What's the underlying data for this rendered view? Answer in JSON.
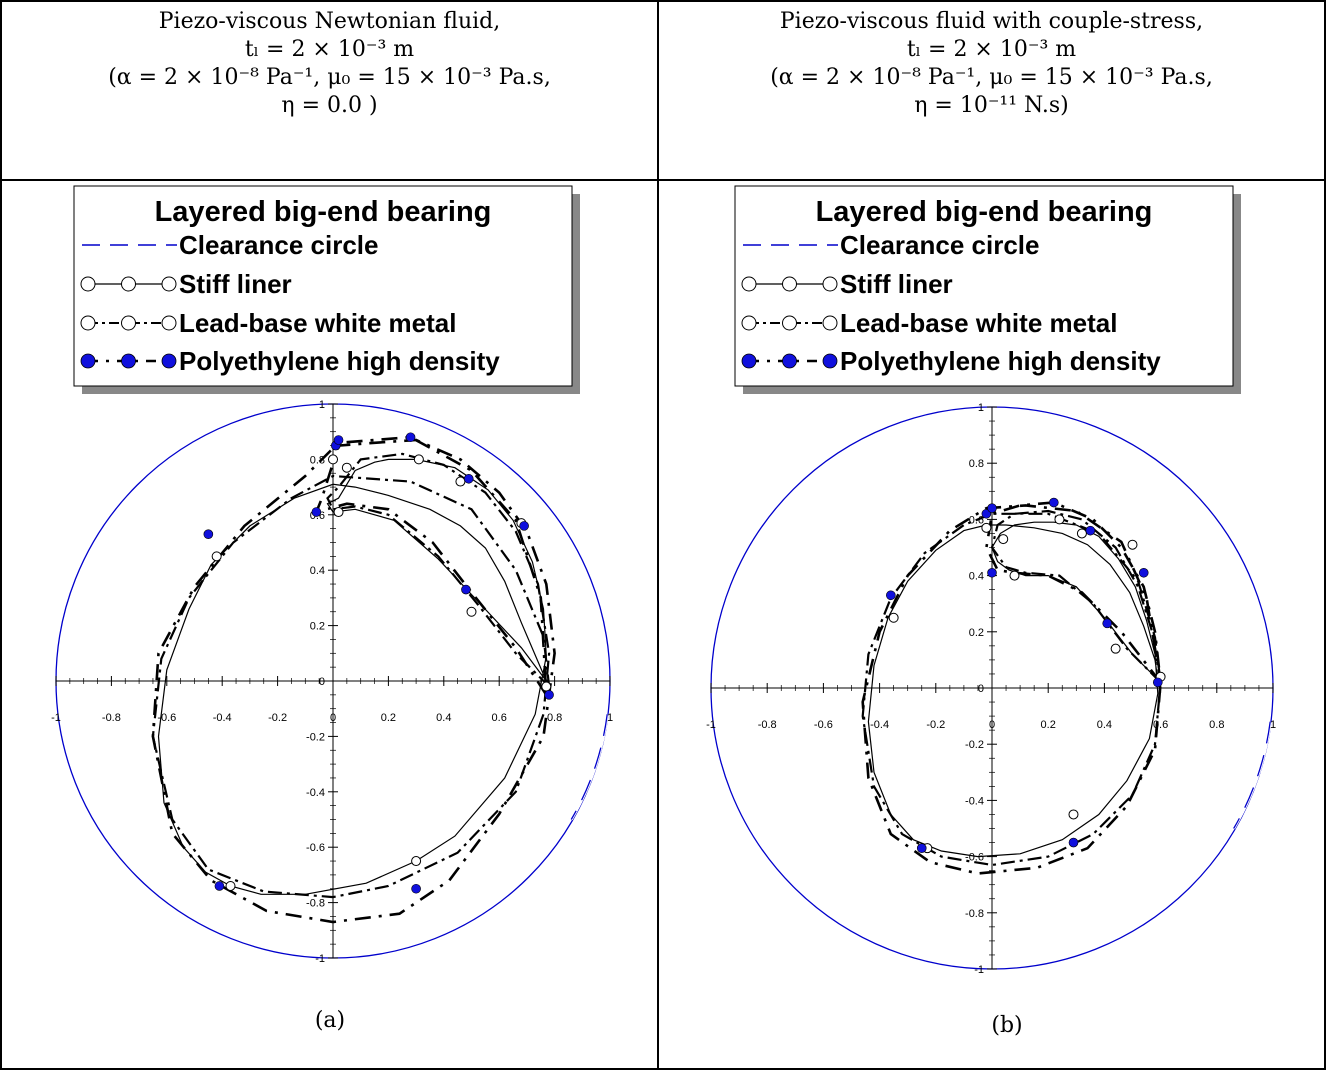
{
  "headers": [
    {
      "line1": "Piezo-viscous Newtonian fluid,",
      "line2": "tₗ = 2 × 10⁻³ m",
      "line3": "(α = 2 × 10⁻⁸ Pa⁻¹, μ₀ = 15 × 10⁻³ Pa.s,",
      "line4": "η = 0.0 )"
    },
    {
      "line1": "Piezo-viscous fluid with couple-stress,",
      "line2": "tₗ = 2 × 10⁻³ m",
      "line3": "(α = 2 × 10⁻⁸ Pa⁻¹, μ₀ = 15 × 10⁻³ Pa.s,",
      "line4": "η = 10⁻¹¹ N.s)"
    }
  ],
  "captions": [
    "(a)",
    "(b)"
  ],
  "colors": {
    "clearance": "#0000cc",
    "polyethylene": "#1010dd",
    "black": "#000000"
  },
  "chart_data": [
    {
      "type": "line",
      "panel": "(a)",
      "legend_title": "Layered big-end bearing",
      "legend": [
        "Clearance circle",
        "Stiff liner",
        "Lead-base white metal",
        "Polyethylene high density"
      ],
      "xlim": [
        -1,
        1
      ],
      "ylim": [
        -1,
        1
      ],
      "x_ticks": [
        "-1",
        "-0.8",
        "-0.6",
        "-0.4",
        "-0.2",
        "0",
        "0.2",
        "0.4",
        "0.6",
        "0.8",
        "1"
      ],
      "y_ticks": [
        "1",
        "0.8",
        "0.6",
        "0.4",
        "0.2",
        "0",
        "-0.2",
        "-0.4",
        "-0.6",
        "-0.8",
        "-1"
      ],
      "series": [
        {
          "name": "Clearance circle",
          "style": "circle",
          "radius": 1
        },
        {
          "name": "Stiff liner",
          "style": "solid-open",
          "x": [
            0.77,
            0.68,
            0.53,
            0.38,
            0.22,
            0.08,
            0.0,
            -0.02,
            0.02,
            0.08,
            0.15,
            0.2,
            0.3,
            0.44,
            0.56,
            0.65,
            0.72,
            0.76,
            0.77,
            0.73,
            0.62,
            0.44,
            0.3,
            0.12,
            -0.1,
            -0.26,
            -0.37,
            -0.46,
            -0.54,
            -0.61,
            -0.63,
            -0.6,
            -0.52,
            -0.44,
            -0.3,
            -0.14,
            0.0,
            0.08,
            0.2,
            0.35,
            0.46,
            0.55,
            0.62,
            0.68,
            0.74,
            0.77
          ],
          "y": [
            0.0,
            0.12,
            0.28,
            0.44,
            0.58,
            0.62,
            0.61,
            0.64,
            0.66,
            0.76,
            0.79,
            0.8,
            0.8,
            0.77,
            0.69,
            0.58,
            0.43,
            0.26,
            0.09,
            -0.12,
            -0.35,
            -0.56,
            -0.65,
            -0.73,
            -0.77,
            -0.77,
            -0.74,
            -0.69,
            -0.6,
            -0.44,
            -0.2,
            0.04,
            0.26,
            0.42,
            0.56,
            0.66,
            0.71,
            0.7,
            0.67,
            0.62,
            0.56,
            0.48,
            0.36,
            0.21,
            0.07,
            0.0
          ],
          "markers_x": [
            0.77,
            0.5,
            0.02,
            0.0,
            0.05,
            0.31,
            0.46,
            0.68,
            0.3,
            -0.37,
            -0.42
          ],
          "markers_y": [
            -0.02,
            0.25,
            0.61,
            0.8,
            0.77,
            0.8,
            0.72,
            0.57,
            -0.65,
            -0.74,
            0.45
          ]
        },
        {
          "name": "Lead-base white metal",
          "style": "dashdot-open",
          "x": [
            0.78,
            0.66,
            0.52,
            0.38,
            0.2,
            0.08,
            0.0,
            -0.02,
            0.02,
            0.1,
            0.25,
            0.4,
            0.55,
            0.66,
            0.74,
            0.78,
            0.76,
            0.66,
            0.45,
            0.2,
            0.0,
            -0.25,
            -0.45,
            -0.58,
            -0.65,
            -0.62,
            -0.52,
            -0.36,
            -0.15,
            0.0,
            0.28,
            0.5,
            0.66,
            0.76,
            0.78
          ],
          "y": [
            -0.02,
            0.1,
            0.28,
            0.45,
            0.6,
            0.63,
            0.62,
            0.66,
            0.7,
            0.8,
            0.82,
            0.78,
            0.68,
            0.54,
            0.35,
            0.1,
            -0.12,
            -0.4,
            -0.62,
            -0.74,
            -0.78,
            -0.76,
            -0.68,
            -0.5,
            -0.2,
            0.08,
            0.3,
            0.5,
            0.66,
            0.74,
            0.72,
            0.62,
            0.4,
            0.16,
            -0.02
          ]
        },
        {
          "name": "Polyethylene high density",
          "style": "dashdot-filled",
          "x": [
            0.77,
            0.66,
            0.5,
            0.36,
            0.2,
            0.05,
            -0.06,
            -0.04,
            0.02,
            0.15,
            0.3,
            0.46,
            0.6,
            0.7,
            0.77,
            0.8,
            0.76,
            0.6,
            0.42,
            0.24,
            0.0,
            -0.24,
            -0.44,
            -0.58,
            -0.65,
            -0.63,
            -0.5,
            -0.32,
            -0.1,
            0.02,
            0.28,
            0.5,
            0.66,
            0.75,
            0.77
          ],
          "y": [
            -0.05,
            0.12,
            0.32,
            0.5,
            0.62,
            0.64,
            0.61,
            0.66,
            0.85,
            0.86,
            0.87,
            0.8,
            0.68,
            0.54,
            0.35,
            0.1,
            -0.2,
            -0.48,
            -0.72,
            -0.84,
            -0.87,
            -0.83,
            -0.72,
            -0.55,
            -0.2,
            0.1,
            0.34,
            0.56,
            0.74,
            0.86,
            0.88,
            0.76,
            0.58,
            0.3,
            -0.05
          ],
          "markers_x": [
            0.78,
            0.48,
            -0.06,
            0.01,
            0.02,
            0.28,
            0.49,
            0.69,
            0.3,
            -0.41,
            -0.45
          ],
          "markers_y": [
            -0.05,
            0.33,
            0.61,
            0.85,
            0.87,
            0.88,
            0.73,
            0.56,
            -0.75,
            -0.74,
            0.53
          ]
        }
      ]
    },
    {
      "type": "line",
      "panel": "(b)",
      "legend_title": "Layered big-end bearing",
      "legend": [
        "Clearance circle",
        "Stiff liner",
        "Lead-base white metal",
        "Polyethylene high density"
      ],
      "xlim": [
        -1,
        1
      ],
      "ylim": [
        -1,
        1
      ],
      "x_ticks": [
        "-1",
        "-0.8",
        "-0.6",
        "-0.4",
        "-0.2",
        "0",
        "0.2",
        "0.4",
        "0.6",
        "0.8",
        "1"
      ],
      "y_ticks": [
        "1",
        "0.8",
        "0.6",
        "0.4",
        "0.2",
        "0",
        "-0.2",
        "-0.4",
        "-0.6",
        "-0.8",
        "-1"
      ],
      "series": [
        {
          "name": "Clearance circle",
          "style": "circle",
          "radius": 1
        },
        {
          "name": "Stiff liner",
          "style": "solid-open",
          "x": [
            0.59,
            0.5,
            0.4,
            0.3,
            0.2,
            0.12,
            0.06,
            0.02,
            0.0,
            0.03,
            0.08,
            0.15,
            0.22,
            0.3,
            0.38,
            0.45,
            0.51,
            0.55,
            0.58,
            0.59,
            0.56,
            0.48,
            0.38,
            0.25,
            0.1,
            -0.05,
            -0.18,
            -0.28,
            -0.36,
            -0.42,
            -0.44,
            -0.42,
            -0.37,
            -0.3,
            -0.2,
            -0.1,
            -0.02,
            0.05,
            0.15,
            0.25,
            0.34,
            0.42,
            0.49,
            0.54,
            0.58,
            0.59
          ],
          "y": [
            0.03,
            0.12,
            0.25,
            0.36,
            0.4,
            0.4,
            0.42,
            0.45,
            0.5,
            0.55,
            0.58,
            0.59,
            0.59,
            0.58,
            0.54,
            0.46,
            0.36,
            0.24,
            0.12,
            -0.02,
            -0.18,
            -0.33,
            -0.45,
            -0.54,
            -0.59,
            -0.6,
            -0.58,
            -0.54,
            -0.45,
            -0.3,
            -0.12,
            0.08,
            0.25,
            0.38,
            0.49,
            0.56,
            0.58,
            0.58,
            0.57,
            0.55,
            0.51,
            0.44,
            0.34,
            0.22,
            0.1,
            0.03
          ],
          "markers_x": [
            0.6,
            0.44,
            0.08,
            0.04,
            -0.02,
            0.24,
            0.32,
            0.5,
            0.29,
            -0.23,
            -0.35
          ],
          "markers_y": [
            0.04,
            0.14,
            0.4,
            0.53,
            0.57,
            0.6,
            0.55,
            0.51,
            -0.45,
            -0.57,
            0.25
          ]
        },
        {
          "name": "Lead-base white metal",
          "style": "dashdot-open",
          "x": [
            0.6,
            0.48,
            0.36,
            0.24,
            0.12,
            0.05,
            0.0,
            0.02,
            0.08,
            0.2,
            0.32,
            0.44,
            0.52,
            0.57,
            0.6,
            0.58,
            0.5,
            0.36,
            0.2,
            0.0,
            -0.18,
            -0.32,
            -0.42,
            -0.46,
            -0.44,
            -0.36,
            -0.24,
            -0.1,
            0.0,
            0.2,
            0.38,
            0.52,
            0.58,
            0.6
          ],
          "y": [
            0.02,
            0.14,
            0.3,
            0.4,
            0.41,
            0.43,
            0.5,
            0.58,
            0.62,
            0.63,
            0.6,
            0.5,
            0.36,
            0.2,
            0.02,
            -0.2,
            -0.38,
            -0.52,
            -0.6,
            -0.63,
            -0.6,
            -0.52,
            -0.35,
            -0.1,
            0.12,
            0.32,
            0.48,
            0.58,
            0.62,
            0.62,
            0.55,
            0.38,
            0.18,
            0.02
          ]
        },
        {
          "name": "Polyethylene high density",
          "style": "dashdot-filled",
          "x": [
            0.6,
            0.46,
            0.32,
            0.2,
            0.08,
            0.02,
            -0.02,
            0.0,
            0.1,
            0.22,
            0.36,
            0.46,
            0.54,
            0.58,
            0.6,
            0.58,
            0.48,
            0.34,
            0.16,
            -0.05,
            -0.22,
            -0.36,
            -0.44,
            -0.46,
            -0.4,
            -0.3,
            -0.15,
            -0.02,
            0.12,
            0.3,
            0.46,
            0.55,
            0.6
          ],
          "y": [
            0.02,
            0.2,
            0.34,
            0.4,
            0.41,
            0.42,
            0.5,
            0.62,
            0.65,
            0.66,
            0.6,
            0.5,
            0.36,
            0.2,
            0.02,
            -0.22,
            -0.42,
            -0.57,
            -0.64,
            -0.66,
            -0.62,
            -0.52,
            -0.32,
            -0.05,
            0.2,
            0.4,
            0.56,
            0.64,
            0.65,
            0.63,
            0.52,
            0.32,
            0.02
          ],
          "markers_x": [
            0.59,
            0.41,
            0.0,
            -0.02,
            0.0,
            0.22,
            0.35,
            0.54,
            0.29,
            -0.25,
            -0.36
          ],
          "markers_y": [
            0.02,
            0.23,
            0.41,
            0.62,
            0.64,
            0.66,
            0.56,
            0.41,
            -0.55,
            -0.57,
            0.33
          ]
        }
      ]
    }
  ]
}
